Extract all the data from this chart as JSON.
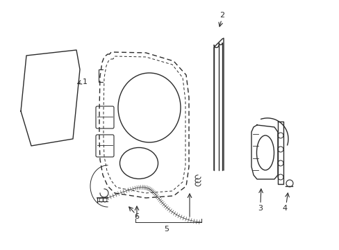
{
  "background_color": "#ffffff",
  "line_color": "#2a2a2a",
  "dashed_color": "#2a2a2a",
  "label_color": "#000000",
  "fig_width": 4.89,
  "fig_height": 3.6,
  "dpi": 100
}
